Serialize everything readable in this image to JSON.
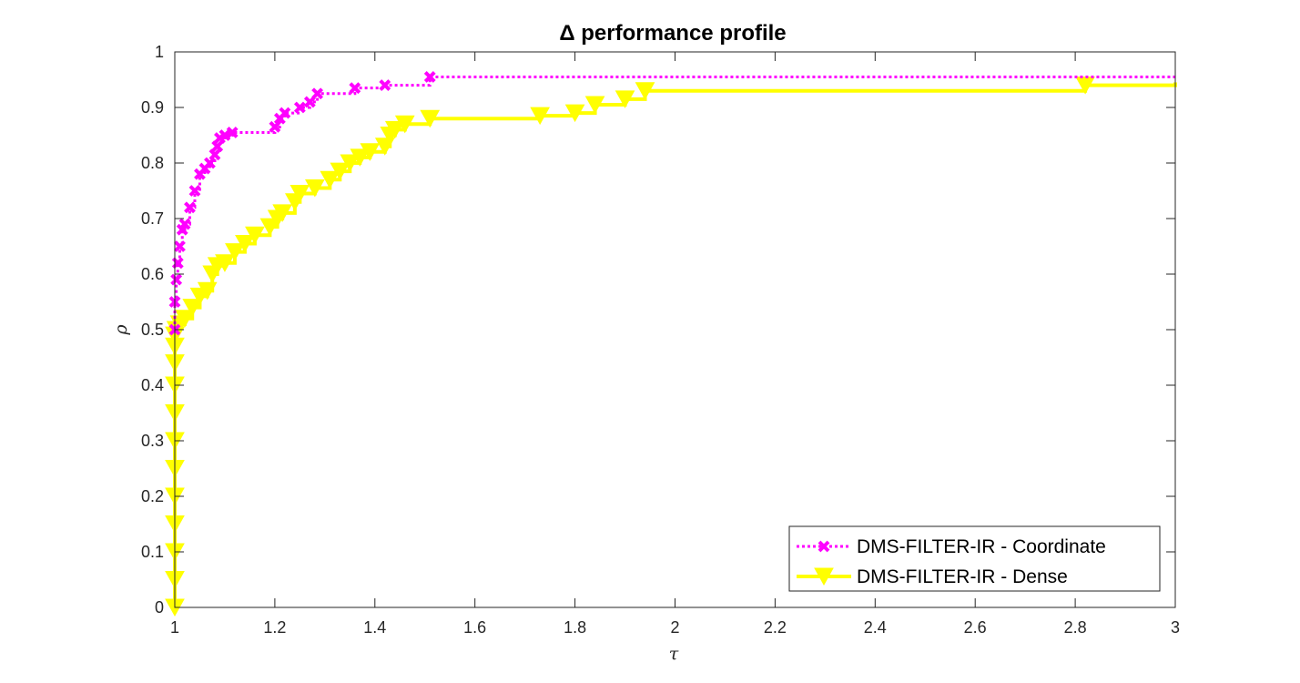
{
  "chart_data": {
    "type": "line",
    "title": "Δ performance profile",
    "xlabel": "τ",
    "ylabel": "ρ",
    "xlim": [
      1,
      3
    ],
    "ylim": [
      0,
      1
    ],
    "grid": false,
    "legend_position": "bottom-right",
    "x_ticks": [
      "1",
      "1.2",
      "1.4",
      "1.6",
      "1.8",
      "2",
      "2.2",
      "2.4",
      "2.6",
      "2.8",
      "3"
    ],
    "y_ticks": [
      "0",
      "0.1",
      "0.2",
      "0.3",
      "0.4",
      "0.5",
      "0.6",
      "0.7",
      "0.8",
      "0.9",
      "1"
    ],
    "series": [
      {
        "name": "DMS-FILTER-IR - Coordinate",
        "color": "#ff00ff",
        "line_style": "dotted",
        "marker": "x",
        "x": [
          1.0,
          1.0,
          1.003,
          1.006,
          1.01,
          1.015,
          1.02,
          1.03,
          1.04,
          1.05,
          1.06,
          1.07,
          1.08,
          1.085,
          1.09,
          1.1,
          1.115,
          1.2,
          1.21,
          1.22,
          1.25,
          1.27,
          1.285,
          1.36,
          1.42,
          1.51,
          3.0
        ],
        "y": [
          0.5,
          0.55,
          0.59,
          0.62,
          0.65,
          0.68,
          0.69,
          0.72,
          0.75,
          0.78,
          0.79,
          0.8,
          0.815,
          0.83,
          0.845,
          0.85,
          0.855,
          0.865,
          0.88,
          0.89,
          0.9,
          0.91,
          0.925,
          0.935,
          0.94,
          0.955,
          0.955
        ]
      },
      {
        "name": "DMS-FILTER-IR - Dense",
        "color": "#ffff00",
        "line_style": "solid",
        "marker": "triangle-down",
        "x": [
          1.0,
          1.0,
          1.0,
          1.0,
          1.0,
          1.0,
          1.0,
          1.0,
          1.0,
          1.0,
          1.0,
          1.0,
          1.003,
          1.01,
          1.02,
          1.035,
          1.05,
          1.065,
          1.075,
          1.085,
          1.1,
          1.12,
          1.14,
          1.16,
          1.19,
          1.205,
          1.215,
          1.24,
          1.25,
          1.28,
          1.31,
          1.33,
          1.35,
          1.37,
          1.39,
          1.42,
          1.43,
          1.44,
          1.46,
          1.51,
          1.73,
          1.8,
          1.84,
          1.9,
          1.94,
          2.82,
          3.0
        ],
        "y": [
          0.0,
          0.05,
          0.1,
          0.15,
          0.2,
          0.25,
          0.3,
          0.35,
          0.4,
          0.44,
          0.47,
          0.49,
          0.5,
          0.51,
          0.52,
          0.54,
          0.56,
          0.57,
          0.6,
          0.615,
          0.62,
          0.64,
          0.655,
          0.67,
          0.685,
          0.7,
          0.71,
          0.73,
          0.745,
          0.755,
          0.77,
          0.785,
          0.8,
          0.81,
          0.82,
          0.83,
          0.85,
          0.86,
          0.87,
          0.88,
          0.885,
          0.89,
          0.905,
          0.915,
          0.93,
          0.94,
          0.945
        ]
      }
    ]
  }
}
